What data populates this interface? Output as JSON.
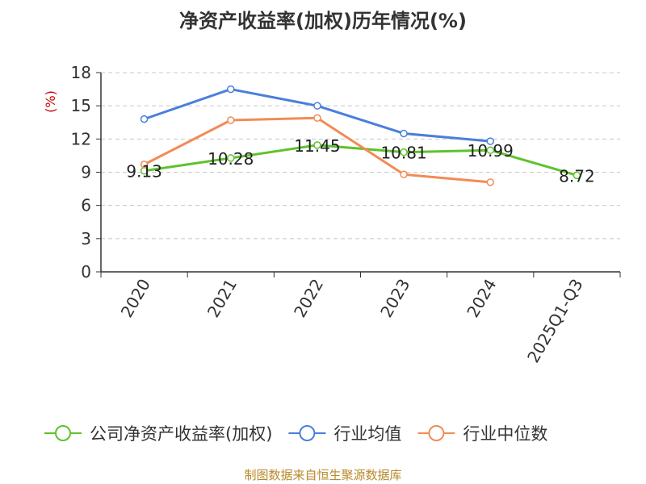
{
  "chart_data": {
    "type": "line",
    "title": "净资产收益率(加权)历年情况(%)",
    "ylabel": "(%)",
    "xlabel": "",
    "ylim": [
      0,
      18
    ],
    "yticks": [
      0,
      3,
      6,
      9,
      12,
      15,
      18
    ],
    "grid": true,
    "legend_position": "bottom",
    "categories": [
      "2020",
      "2021",
      "2022",
      "2023",
      "2024",
      "2025Q1-Q3"
    ],
    "series": [
      {
        "name": "公司净资产收益率(加权)",
        "color": "#5ec22d",
        "values": [
          9.13,
          10.28,
          11.45,
          10.81,
          10.99,
          8.72
        ],
        "labels": [
          "9.13",
          "10.28",
          "11.45",
          "10.81",
          "10.99",
          "8.72"
        ],
        "show_labels": true
      },
      {
        "name": "行业均值",
        "color": "#4a7fdb",
        "values": [
          13.8,
          16.5,
          15.0,
          12.5,
          11.8,
          null
        ],
        "show_labels": false
      },
      {
        "name": "行业中位数",
        "color": "#f28b55",
        "values": [
          9.7,
          13.7,
          13.9,
          8.8,
          8.1,
          null
        ],
        "show_labels": false
      }
    ]
  },
  "source_text": "制图数据来自恒生聚源数据库"
}
